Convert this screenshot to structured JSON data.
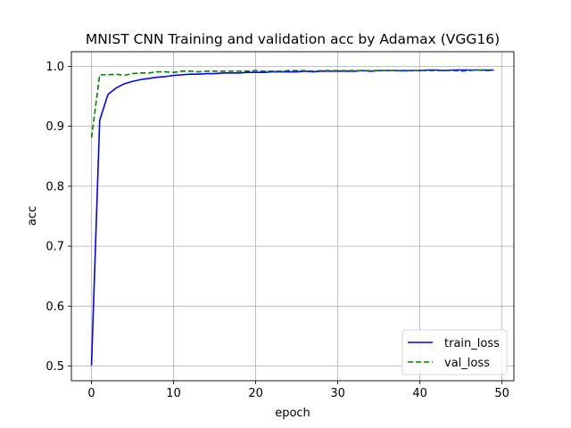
{
  "chart_data": {
    "type": "line",
    "title": "MNIST CNN Training and validation acc by Adamax (VGG16)",
    "xlabel": "epoch",
    "ylabel": "acc",
    "xlim": [
      -2.45,
      51.45
    ],
    "ylim": [
      0.4755,
      1.0245
    ],
    "xticks": [
      0,
      10,
      20,
      30,
      40,
      50
    ],
    "xtick_labels": [
      "0",
      "10",
      "20",
      "30",
      "40",
      "50"
    ],
    "yticks": [
      0.5,
      0.6,
      0.7,
      0.8,
      0.9,
      1.0
    ],
    "ytick_labels": [
      "0.5",
      "0.6",
      "0.7",
      "0.8",
      "0.9",
      "1.0"
    ],
    "grid": true,
    "legend_position": "lower-right",
    "x": [
      0,
      1,
      2,
      3,
      4,
      5,
      6,
      7,
      8,
      9,
      10,
      11,
      12,
      13,
      14,
      15,
      16,
      17,
      18,
      19,
      20,
      21,
      22,
      23,
      24,
      25,
      26,
      27,
      28,
      29,
      30,
      31,
      32,
      33,
      34,
      35,
      36,
      37,
      38,
      39,
      40,
      41,
      42,
      43,
      44,
      45,
      46,
      47,
      48,
      49
    ],
    "series": [
      {
        "name": "train_loss",
        "color": "#0000ff",
        "dash": "solid",
        "values": [
          0.501,
          0.91,
          0.953,
          0.964,
          0.971,
          0.975,
          0.978,
          0.98,
          0.982,
          0.983,
          0.985,
          0.986,
          0.987,
          0.987,
          0.988,
          0.988,
          0.989,
          0.989,
          0.989,
          0.99,
          0.99,
          0.99,
          0.991,
          0.991,
          0.991,
          0.991,
          0.992,
          0.991,
          0.992,
          0.992,
          0.992,
          0.992,
          0.992,
          0.993,
          0.992,
          0.993,
          0.993,
          0.993,
          0.993,
          0.993,
          0.993,
          0.994,
          0.994,
          0.993,
          0.994,
          0.994,
          0.994,
          0.994,
          0.994,
          0.994
        ]
      },
      {
        "name": "val_loss",
        "color": "#008000",
        "dash": "dashed",
        "values": [
          0.881,
          0.986,
          0.986,
          0.987,
          0.985,
          0.988,
          0.989,
          0.989,
          0.991,
          0.991,
          0.99,
          0.992,
          0.992,
          0.991,
          0.992,
          0.992,
          0.992,
          0.992,
          0.992,
          0.992,
          0.993,
          0.992,
          0.992,
          0.992,
          0.993,
          0.993,
          0.993,
          0.992,
          0.993,
          0.993,
          0.993,
          0.993,
          0.993,
          0.993,
          0.993,
          0.993,
          0.993,
          0.993,
          0.992,
          0.993,
          0.993,
          0.993,
          0.993,
          0.993,
          0.993,
          0.992,
          0.993,
          0.994,
          0.993,
          0.993
        ]
      }
    ]
  }
}
